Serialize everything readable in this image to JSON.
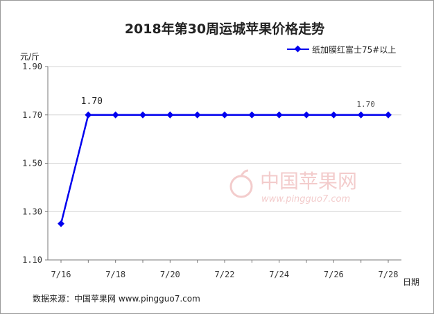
{
  "chart_data": {
    "type": "line",
    "title": "2018年第30周运城苹果价格走势",
    "ylabel": "元/斤",
    "xlabel": "日期",
    "ylim": [
      1.1,
      1.9
    ],
    "yticks": [
      "1.90",
      "1.70",
      "1.50",
      "1.30",
      "1.10"
    ],
    "xticks": [
      "7/16",
      "7/18",
      "7/20",
      "7/22",
      "7/24",
      "7/26",
      "7/28"
    ],
    "x": [
      "7/16",
      "7/17",
      "7/18",
      "7/19",
      "7/20",
      "7/21",
      "7/22",
      "7/23",
      "7/24",
      "7/25",
      "7/26",
      "7/27",
      "7/28"
    ],
    "series": [
      {
        "name": "纸加膜红富士75#以上",
        "color": "#0000ee",
        "values": [
          1.25,
          1.7,
          1.7,
          1.7,
          1.7,
          1.7,
          1.7,
          1.7,
          1.7,
          1.7,
          1.7,
          1.7,
          1.7
        ]
      }
    ],
    "data_labels": [
      {
        "x": "7/17",
        "text": "1.70"
      },
      {
        "x": "7/27",
        "text": "1.70"
      }
    ],
    "grid": "horizontal",
    "legend_position": "top-right"
  },
  "source": "数据来源：中国苹果网 www.pingguo7.com",
  "watermark": {
    "name": "中国苹果网",
    "url": "www.pingguo7.com"
  }
}
